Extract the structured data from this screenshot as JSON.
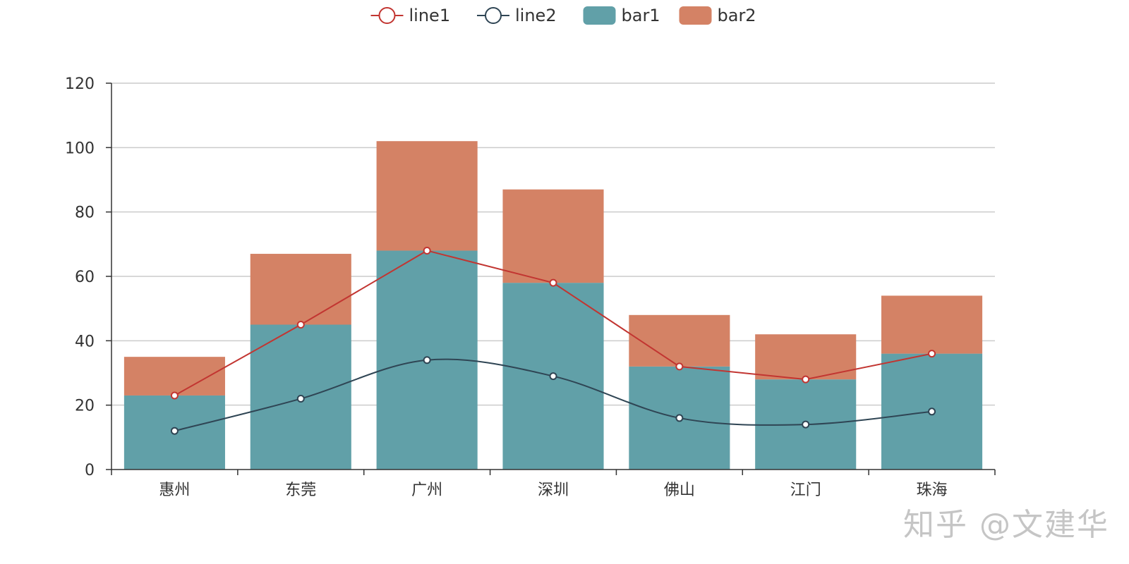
{
  "chart_data": {
    "type": "bar",
    "stacked": true,
    "title": "",
    "xlabel": "",
    "ylabel": "",
    "categories": [
      "惠州",
      "东莞",
      "广州",
      "深圳",
      "佛山",
      "江门",
      "珠海"
    ],
    "ylim": [
      0,
      120
    ],
    "yticks": [
      0,
      20,
      40,
      60,
      80,
      100,
      120
    ],
    "grid": true,
    "legend_position": "top-center",
    "series": [
      {
        "name": "line1",
        "type": "line",
        "smooth": false,
        "color": "#c23531",
        "values": [
          23,
          45,
          68,
          58,
          32,
          28,
          36
        ]
      },
      {
        "name": "line2",
        "type": "line",
        "smooth": true,
        "color": "#2f4554",
        "values": [
          12,
          22,
          34,
          29,
          16,
          14,
          18
        ]
      },
      {
        "name": "bar1",
        "type": "bar",
        "stack": "total",
        "color": "#61a0a8",
        "values": [
          23,
          45,
          68,
          58,
          32,
          28,
          36
        ]
      },
      {
        "name": "bar2",
        "type": "bar",
        "stack": "total",
        "color": "#d48265",
        "values": [
          12,
          22,
          34,
          29,
          16,
          14,
          18
        ]
      }
    ]
  },
  "watermark": "知乎 @文建华"
}
